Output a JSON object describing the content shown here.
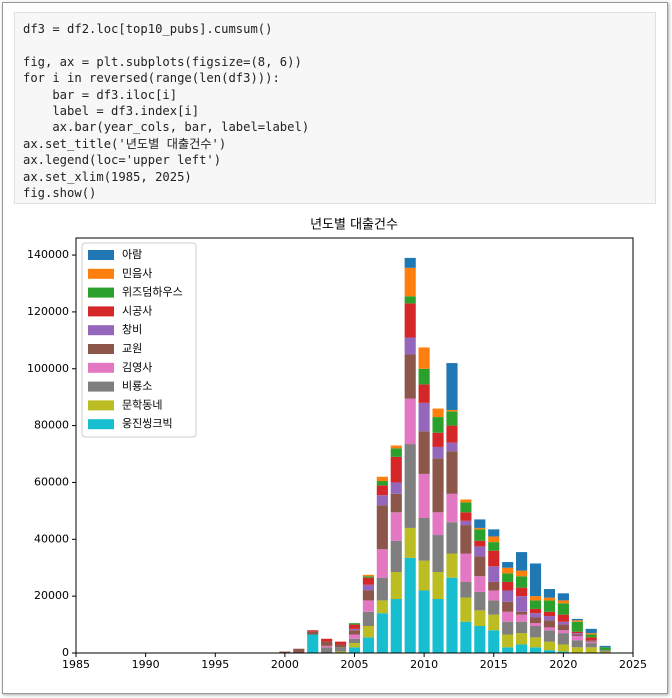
{
  "code": "df3 = df2.loc[top10_pubs].cumsum()\n\nfig, ax = plt.subplots(figsize=(8, 6))\nfor i in reversed(range(len(df3))):\n    bar = df3.iloc[i]\n    label = df3.index[i]\n    ax.bar(year_cols, bar, label=label)\nax.set_title('년도별 대출건수')\nax.legend(loc='upper left')\nax.set_xlim(1985, 2025)\nfig.show()",
  "chart_data": {
    "type": "bar",
    "stacked": true,
    "title": "년도별 대출건수",
    "x": [
      2000,
      2001,
      2002,
      2003,
      2004,
      2005,
      2006,
      2007,
      2008,
      2009,
      2010,
      2011,
      2012,
      2013,
      2014,
      2015,
      2016,
      2017,
      2018,
      2019,
      2020,
      2021,
      2022,
      2023
    ],
    "xlim": [
      1985,
      2025
    ],
    "xticks": [
      1985,
      1990,
      1995,
      2000,
      2005,
      2010,
      2015,
      2020,
      2025
    ],
    "ylim": [
      0,
      146000
    ],
    "yticks": [
      0,
      20000,
      40000,
      60000,
      80000,
      100000,
      120000,
      140000
    ],
    "legend": "upper left",
    "series": [
      {
        "name": "아람",
        "color": "#1f77b4",
        "values": [
          0,
          0,
          0,
          0,
          0,
          0,
          0,
          0,
          0,
          3500,
          0,
          0,
          16500,
          0,
          3000,
          2500,
          2000,
          6500,
          11500,
          3000,
          2500,
          500,
          1500,
          500
        ]
      },
      {
        "name": "민음사",
        "color": "#ff7f0e",
        "values": [
          0,
          0,
          0,
          0,
          0,
          0,
          500,
          1500,
          1000,
          10000,
          7500,
          3000,
          500,
          1000,
          500,
          2000,
          2000,
          2000,
          1500,
          1000,
          1000,
          500,
          500,
          0
        ]
      },
      {
        "name": "위즈덤하우스",
        "color": "#2ca02c",
        "values": [
          0,
          0,
          0,
          0,
          0,
          500,
          500,
          1500,
          3000,
          2500,
          5500,
          5500,
          5000,
          3500,
          4000,
          3000,
          3000,
          4000,
          3000,
          4000,
          4000,
          3500,
          1000,
          1000
        ]
      },
      {
        "name": "시공사",
        "color": "#d62728",
        "values": [
          0,
          0,
          500,
          1000,
          1000,
          1500,
          2500,
          3500,
          9000,
          12000,
          6500,
          5000,
          6000,
          3000,
          2000,
          5500,
          3000,
          3000,
          1500,
          1500,
          2500,
          500,
          1000,
          0
        ]
      },
      {
        "name": "창비",
        "color": "#9467bd",
        "values": [
          0,
          0,
          0,
          0,
          0,
          500,
          2000,
          3500,
          4000,
          6000,
          10000,
          4000,
          3000,
          1500,
          3500,
          5500,
          4000,
          5500,
          1500,
          1500,
          1000,
          500,
          0,
          0
        ]
      },
      {
        "name": "교원",
        "color": "#8c564b",
        "values": [
          500,
          1500,
          1000,
          1500,
          1000,
          1500,
          3500,
          15500,
          6500,
          15500,
          15000,
          19000,
          15000,
          10000,
          7000,
          3000,
          3500,
          1000,
          2000,
          2500,
          2000,
          500,
          500,
          0
        ]
      },
      {
        "name": "김영사",
        "color": "#e377c2",
        "values": [
          0,
          0,
          0,
          500,
          0,
          1500,
          4000,
          10000,
          10000,
          16000,
          15500,
          8000,
          10000,
          10000,
          5500,
          3500,
          3500,
          2500,
          1000,
          1000,
          1000,
          1500,
          500,
          0
        ]
      },
      {
        "name": "비룡소",
        "color": "#7f7f7f",
        "values": [
          0,
          0,
          0,
          2000,
          1500,
          1500,
          5000,
          8000,
          11000,
          29500,
          15000,
          13000,
          11000,
          5500,
          6500,
          5000,
          4500,
          4000,
          4000,
          4000,
          4000,
          2500,
          1500,
          500
        ]
      },
      {
        "name": "문학동네",
        "color": "#bcbd22",
        "values": [
          0,
          0,
          0,
          0,
          500,
          1500,
          4000,
          4500,
          9500,
          10500,
          10500,
          9500,
          8500,
          8500,
          5500,
          5500,
          4500,
          4000,
          3500,
          3000,
          2500,
          2000,
          2000,
          500
        ]
      },
      {
        "name": "웅진씽크빅",
        "color": "#17becf",
        "values": [
          0,
          0,
          6500,
          0,
          0,
          2000,
          5500,
          14000,
          19000,
          33500,
          22000,
          19000,
          26500,
          11000,
          9500,
          8000,
          2000,
          3000,
          2000,
          1000,
          500,
          0,
          0,
          0
        ]
      }
    ]
  }
}
